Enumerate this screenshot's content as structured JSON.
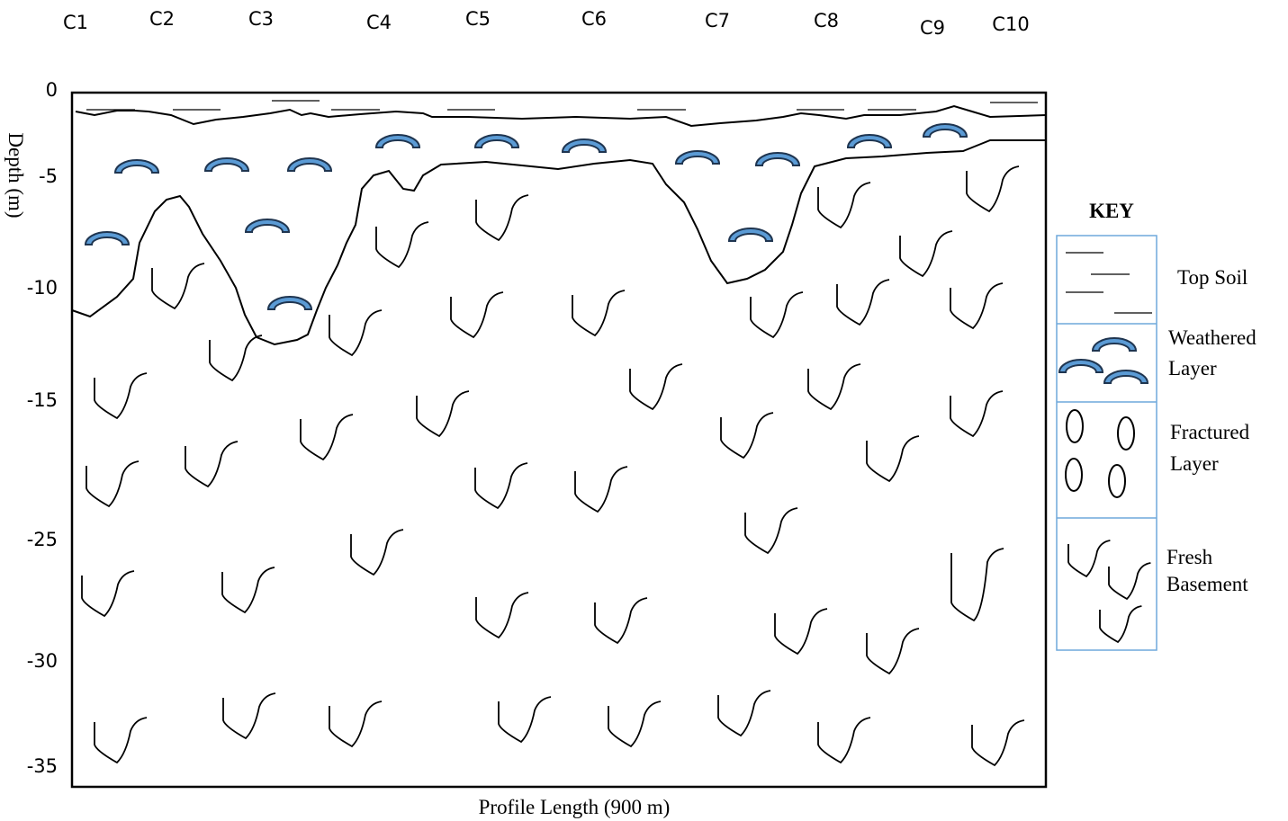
{
  "columns": [
    "C1",
    "C2",
    "C3",
    "C4",
    "C5",
    "C6",
    "C7",
    "C8",
    "C9",
    "C10"
  ],
  "axis": {
    "y_title": "Depth (m)",
    "x_title": "Profile Length (900 m)",
    "depth_labels": [
      "0",
      "-5",
      "-10",
      "-15",
      "-25",
      "-30",
      "-35"
    ]
  },
  "key": {
    "title": "KEY",
    "items": [
      {
        "lines": [
          "Top Soil"
        ]
      },
      {
        "lines": [
          "Weathered",
          "Layer"
        ]
      },
      {
        "lines": [
          "Fractured",
          "Layer"
        ]
      },
      {
        "lines": [
          "Fresh",
          "Basement"
        ]
      }
    ]
  }
}
